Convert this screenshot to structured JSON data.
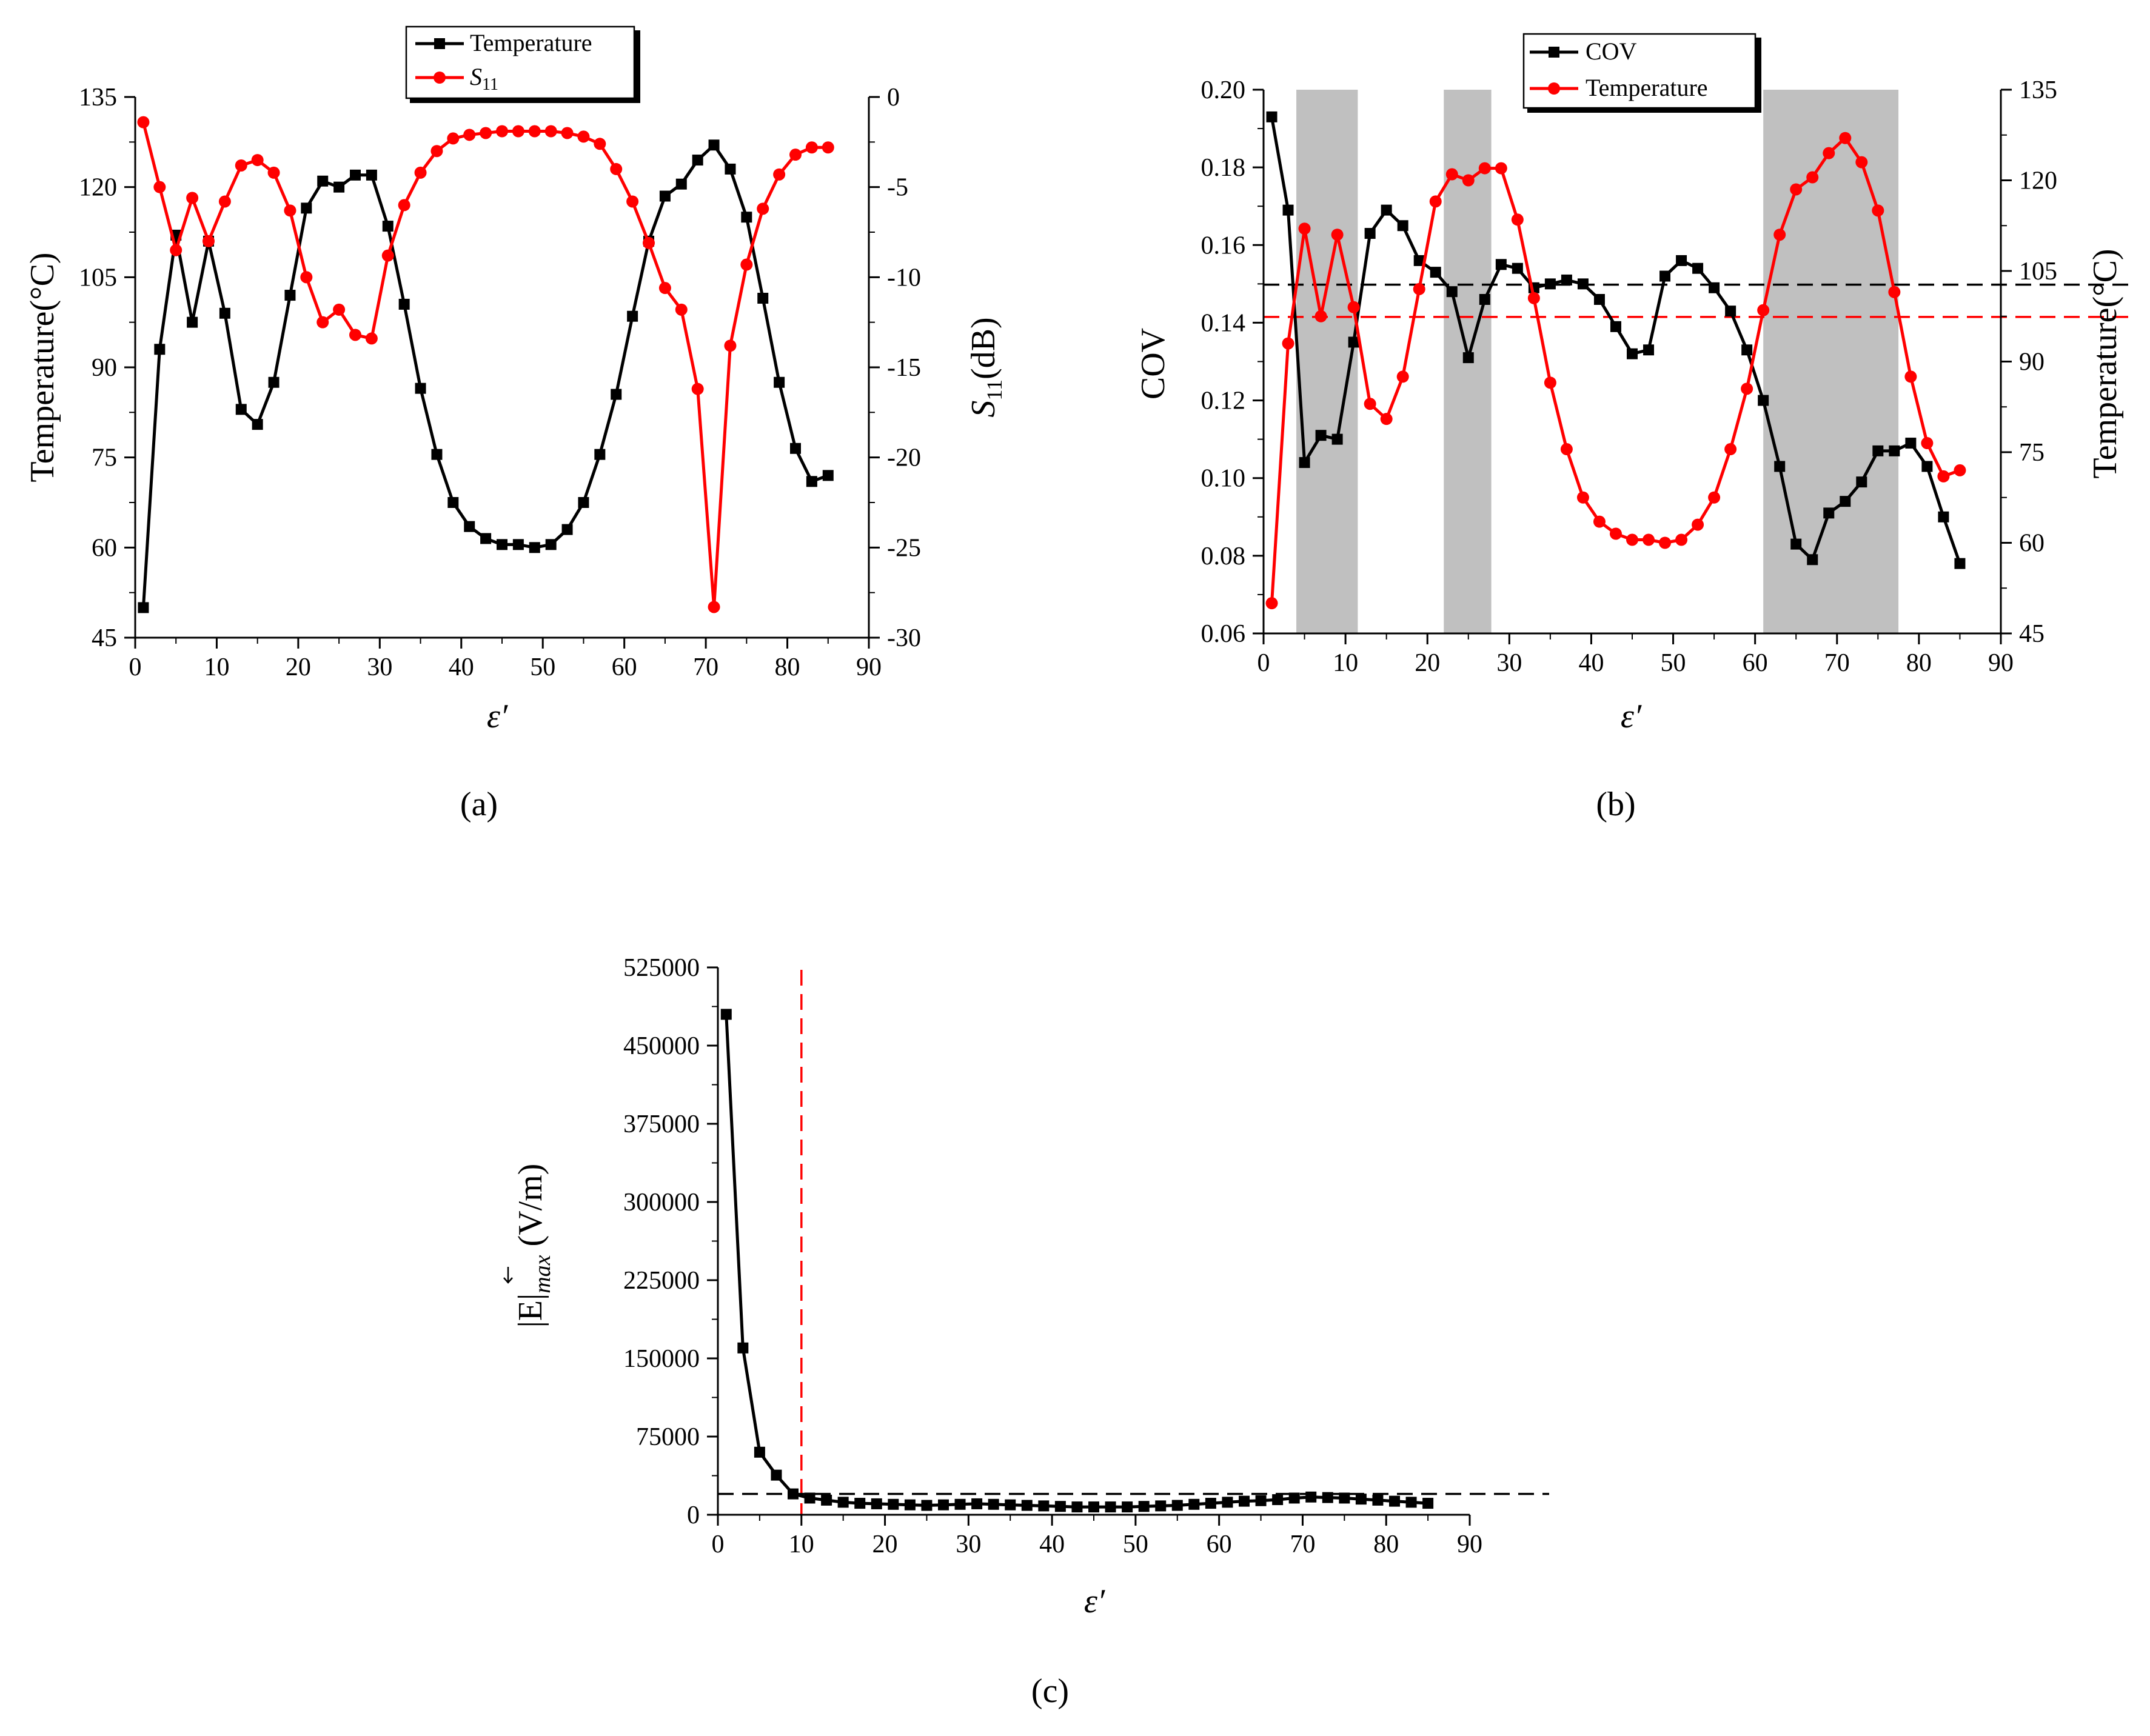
{
  "figure": {
    "panel_labels": [
      "(a)",
      "(b)",
      "(c)"
    ]
  },
  "chart_data": [
    {
      "panel": "a",
      "type": "line",
      "x_label": "ε′",
      "xlim": [
        0,
        90
      ],
      "x_ticks": [
        0,
        10,
        20,
        30,
        40,
        50,
        60,
        70,
        80,
        90
      ],
      "y_left": {
        "label": "Temperature(°C)",
        "lim": [
          45,
          135
        ],
        "ticks": [
          45,
          60,
          75,
          90,
          105,
          120,
          135
        ]
      },
      "y_right": {
        "label": "S11(dB)",
        "label_main": "S",
        "label_sub": "11",
        "label_unit": "(dB)",
        "lim": [
          -30,
          0
        ],
        "ticks": [
          -30,
          -25,
          -20,
          -15,
          -10,
          -5,
          0
        ]
      },
      "legend": {
        "position": "top-center",
        "entries": [
          "Temperature",
          "S11"
        ],
        "s_main": "S",
        "s_sub": "11"
      },
      "series": [
        {
          "name": "Temperature",
          "axis": "left",
          "color": "#000000",
          "marker": "square",
          "x": [
            1,
            3,
            5,
            7,
            9,
            11,
            13,
            15,
            17,
            19,
            21,
            23,
            25,
            27,
            29,
            31,
            33,
            35,
            37,
            39,
            41,
            43,
            45,
            47,
            49,
            51,
            53,
            55,
            57,
            59,
            61,
            63,
            65,
            67,
            69,
            71,
            73,
            75,
            77,
            79,
            81,
            83,
            85
          ],
          "y": [
            50,
            93,
            112,
            97.5,
            111,
            99,
            83,
            80.5,
            87.5,
            102,
            116.5,
            121,
            120,
            122,
            122,
            113.5,
            100.5,
            86.5,
            75.5,
            67.5,
            63.5,
            61.5,
            60.5,
            60.5,
            60,
            60.5,
            63,
            67.5,
            75.5,
            85.5,
            98.5,
            111,
            118.5,
            120.5,
            124.5,
            127,
            123,
            115,
            101.5,
            87.5,
            76.5,
            71,
            72
          ]
        },
        {
          "name": "S11",
          "axis": "right",
          "color": "#ff0000",
          "marker": "circle",
          "x": [
            1,
            3,
            5,
            7,
            9,
            11,
            13,
            15,
            17,
            19,
            21,
            23,
            25,
            27,
            29,
            31,
            33,
            35,
            37,
            39,
            41,
            43,
            45,
            47,
            49,
            51,
            53,
            55,
            57,
            59,
            61,
            63,
            65,
            67,
            69,
            71,
            73,
            75,
            77,
            79,
            81,
            83,
            85
          ],
          "y": [
            -1.4,
            -5,
            -8.5,
            -5.6,
            -8,
            -5.8,
            -3.8,
            -3.5,
            -4.2,
            -6.3,
            -10,
            -12.5,
            -11.8,
            -13.2,
            -13.4,
            -8.8,
            -6,
            -4.2,
            -3,
            -2.3,
            -2.1,
            -2,
            -1.9,
            -1.9,
            -1.9,
            -1.9,
            -2,
            -2.2,
            -2.6,
            -4,
            -5.8,
            -8.1,
            -10.6,
            -11.8,
            -16.2,
            -28.3,
            -13.8,
            -9.3,
            -6.2,
            -4.3,
            -3.2,
            -2.8,
            -2.8
          ]
        }
      ]
    },
    {
      "panel": "b",
      "type": "line",
      "x_label": "ε′",
      "xlim": [
        0,
        90
      ],
      "x_ticks": [
        0,
        10,
        20,
        30,
        40,
        50,
        60,
        70,
        80,
        90
      ],
      "y_left": {
        "label": "COV",
        "lim": [
          0.06,
          0.2
        ],
        "ticks": [
          0.06,
          0.08,
          0.1,
          0.12,
          0.14,
          0.16,
          0.18,
          0.2
        ],
        "tick_labels": [
          "0.06",
          "0.08",
          "0.10",
          "0.12",
          "0.14",
          "0.16",
          "0.18",
          "0.20"
        ]
      },
      "y_right": {
        "label": "Temperature(°C)",
        "lim": [
          45,
          135
        ],
        "ticks": [
          45,
          60,
          75,
          90,
          105,
          120,
          135
        ]
      },
      "legend": {
        "position": "top-center",
        "entries": [
          "COV",
          "Temperature"
        ]
      },
      "shaded_regions_x": [
        [
          4,
          11.5
        ],
        [
          22,
          27.8
        ],
        [
          61,
          77.5
        ]
      ],
      "reference_lines": [
        {
          "axis": "left",
          "value": 0.1498,
          "color": "#000000",
          "style": "dashed"
        },
        {
          "axis": "left",
          "value": 0.1415,
          "color": "#ff0000",
          "style": "dashed"
        }
      ],
      "series": [
        {
          "name": "COV",
          "axis": "left",
          "color": "#000000",
          "marker": "square",
          "x": [
            1,
            3,
            5,
            7,
            9,
            11,
            13,
            15,
            17,
            19,
            21,
            23,
            25,
            27,
            29,
            31,
            33,
            35,
            37,
            39,
            41,
            43,
            45,
            47,
            49,
            51,
            53,
            55,
            57,
            59,
            61,
            63,
            65,
            67,
            69,
            71,
            73,
            75,
            77,
            79,
            81,
            83,
            85
          ],
          "y": [
            0.193,
            0.169,
            0.104,
            0.111,
            0.11,
            0.135,
            0.163,
            0.169,
            0.165,
            0.156,
            0.153,
            0.148,
            0.131,
            0.146,
            0.155,
            0.154,
            0.149,
            0.15,
            0.151,
            0.15,
            0.146,
            0.139,
            0.132,
            0.133,
            0.152,
            0.156,
            0.154,
            0.149,
            0.143,
            0.133,
            0.12,
            0.103,
            0.083,
            0.079,
            0.091,
            0.094,
            0.099,
            0.107,
            0.107,
            0.109,
            0.103,
            0.09,
            0.078
          ]
        },
        {
          "name": "Temperature",
          "axis": "right",
          "color": "#ff0000",
          "marker": "circle",
          "x": [
            1,
            3,
            5,
            7,
            9,
            11,
            13,
            15,
            17,
            19,
            21,
            23,
            25,
            27,
            29,
            31,
            33,
            35,
            37,
            39,
            41,
            43,
            45,
            47,
            49,
            51,
            53,
            55,
            57,
            59,
            61,
            63,
            65,
            67,
            69,
            71,
            73,
            75,
            77,
            79,
            81,
            83,
            85
          ],
          "y": [
            50,
            93,
            112,
            97.5,
            111,
            99,
            83,
            80.5,
            87.5,
            102,
            116.5,
            121,
            120,
            122,
            122,
            113.5,
            100.5,
            86.5,
            75.5,
            67.5,
            63.5,
            61.5,
            60.5,
            60.5,
            60,
            60.5,
            63,
            67.5,
            75.5,
            85.5,
            98.5,
            111,
            118.5,
            120.5,
            124.5,
            127,
            123,
            115,
            101.5,
            87.5,
            76.5,
            71,
            72
          ]
        }
      ]
    },
    {
      "panel": "c",
      "type": "line",
      "x_label": "ε′",
      "xlim": [
        0,
        90
      ],
      "x_ticks": [
        0,
        10,
        20,
        30,
        40,
        50,
        60,
        70,
        80,
        90
      ],
      "y_label": "|E|max (V/m)",
      "y_label_parts": {
        "main": "|E|",
        "sub": "max",
        "unit": "(V/m)"
      },
      "ylim": [
        0,
        525000
      ],
      "y_ticks": [
        0,
        75000,
        150000,
        225000,
        300000,
        375000,
        450000,
        525000
      ],
      "reference_lines": [
        {
          "orientation": "vertical",
          "value": 10,
          "color": "#ff0000",
          "style": "dashed"
        },
        {
          "orientation": "horizontal",
          "value": 20000,
          "color": "#000000",
          "style": "dashed"
        }
      ],
      "series": [
        {
          "name": "|E|max",
          "color": "#000000",
          "marker": "square",
          "x": [
            1,
            3,
            5,
            7,
            9,
            11,
            13,
            15,
            17,
            19,
            21,
            23,
            25,
            27,
            29,
            31,
            33,
            35,
            37,
            39,
            41,
            43,
            45,
            47,
            49,
            51,
            53,
            55,
            57,
            59,
            61,
            63,
            65,
            67,
            69,
            71,
            73,
            75,
            77,
            79,
            81,
            83,
            85
          ],
          "y": [
            480000,
            160000,
            60000,
            38000,
            20000,
            16000,
            14000,
            12000,
            11000,
            10500,
            10000,
            9500,
            9000,
            9500,
            10000,
            10500,
            10000,
            9500,
            9000,
            8500,
            8000,
            7500,
            7500,
            7500,
            7500,
            8000,
            8500,
            9000,
            10000,
            11000,
            12000,
            13000,
            13500,
            14500,
            16000,
            17000,
            16500,
            16000,
            15000,
            14000,
            13000,
            12000,
            11000
          ]
        }
      ]
    }
  ]
}
